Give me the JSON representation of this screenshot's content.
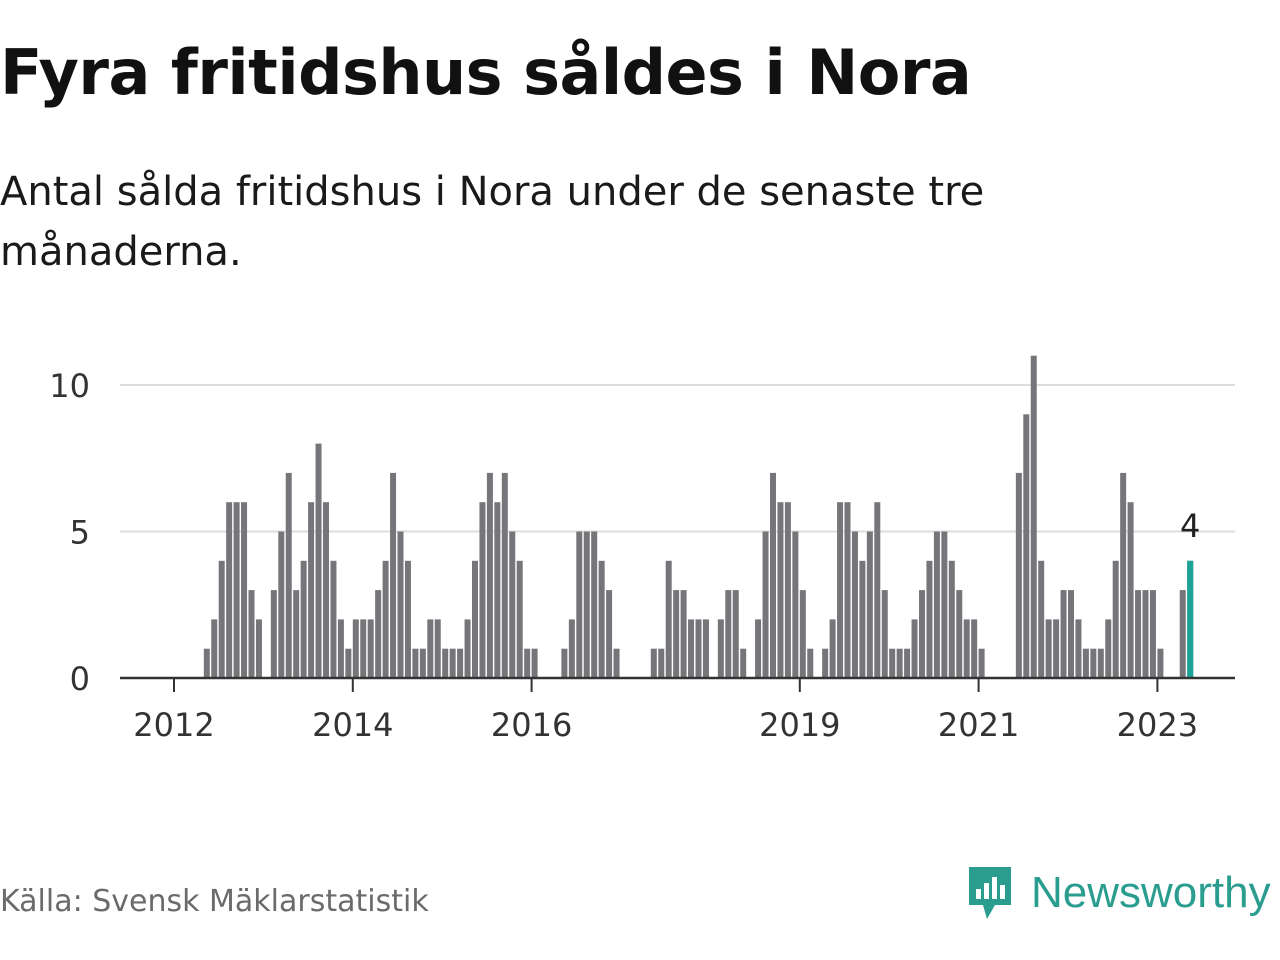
{
  "title": "Fyra fritidshus såldes i Nora",
  "subtitle": "Antal sålda fritidshus i Nora under de senaste tre månaderna.",
  "source": "Källa: Svensk Mäklarstatistik",
  "brand": {
    "name": "Newsworthy",
    "icon": "newsworthy-logo-icon",
    "color": "#2a9d8f"
  },
  "chart_data": {
    "type": "bar",
    "title": "Fyra fritidshus såldes i Nora",
    "xlabel": "",
    "ylabel": "",
    "start": "2012-01",
    "frequency": "monthly",
    "ylim": [
      0,
      12
    ],
    "yticks": [
      0,
      5,
      10
    ],
    "xticks": [
      {
        "label": "2012",
        "index": 0
      },
      {
        "label": "2014",
        "index": 24
      },
      {
        "label": "2016",
        "index": 48
      },
      {
        "label": "2019",
        "index": 84
      },
      {
        "label": "2021",
        "index": 108
      },
      {
        "label": "2023",
        "index": 132
      }
    ],
    "values": [
      0,
      0,
      0,
      0,
      1,
      2,
      4,
      6,
      6,
      6,
      3,
      2,
      0,
      3,
      5,
      7,
      3,
      4,
      6,
      8,
      6,
      4,
      2,
      1,
      2,
      2,
      2,
      3,
      4,
      7,
      5,
      4,
      1,
      1,
      2,
      2,
      1,
      1,
      1,
      2,
      4,
      6,
      7,
      6,
      7,
      5,
      4,
      1,
      1,
      0,
      0,
      0,
      1,
      2,
      5,
      5,
      5,
      4,
      3,
      1,
      0,
      0,
      0,
      0,
      1,
      1,
      4,
      3,
      3,
      2,
      2,
      2,
      0,
      2,
      3,
      3,
      1,
      0,
      2,
      5,
      7,
      6,
      6,
      5,
      3,
      1,
      0,
      1,
      2,
      6,
      6,
      5,
      4,
      5,
      6,
      3,
      1,
      1,
      1,
      2,
      3,
      4,
      5,
      5,
      4,
      3,
      2,
      2,
      1,
      0,
      0,
      0,
      0,
      7,
      9,
      11,
      4,
      2,
      2,
      3,
      3,
      2,
      1,
      1,
      1,
      2,
      4,
      7,
      6,
      3,
      3,
      3,
      1,
      0,
      0,
      3,
      4
    ],
    "highlight": {
      "index": 136,
      "value": 4,
      "label": "4",
      "color": "#1aa396"
    },
    "bar_color": "#76767a",
    "grid": true
  }
}
